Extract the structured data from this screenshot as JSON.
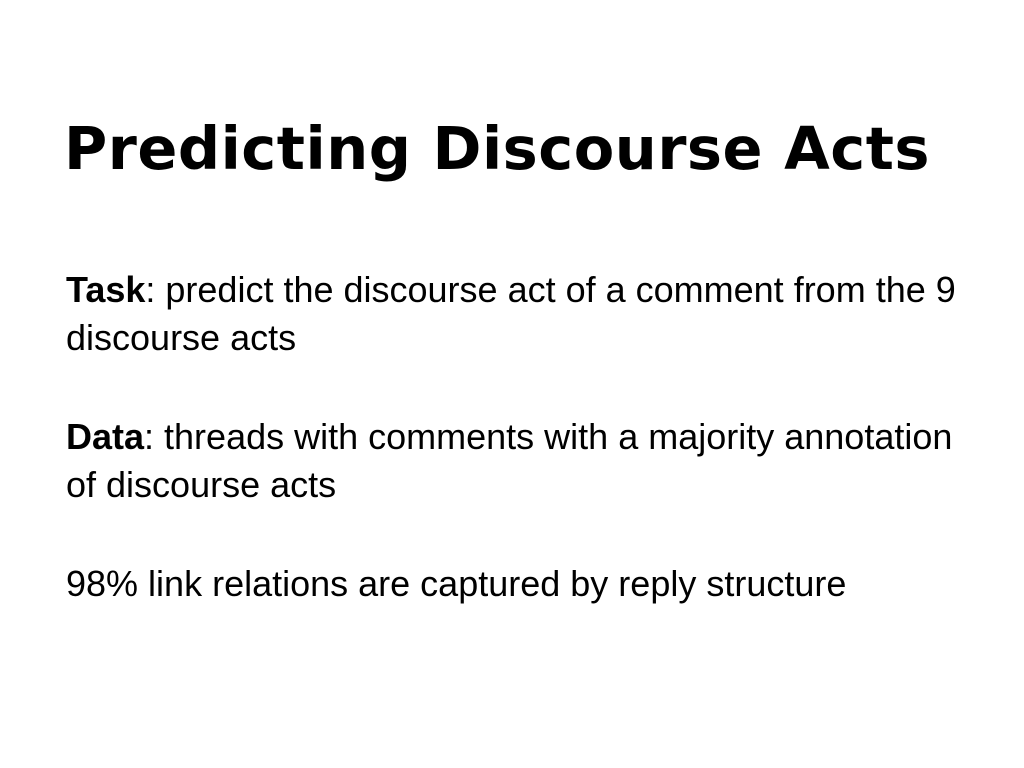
{
  "slide": {
    "title": "Predicting Discourse Acts",
    "task": {
      "label": "Task",
      "text": ": predict the discourse act of a comment from the 9 discourse acts"
    },
    "data": {
      "label": "Data",
      "text": ": threads with comments with a majority annotation of discourse acts"
    },
    "note": "98% link relations are captured by reply structure"
  }
}
